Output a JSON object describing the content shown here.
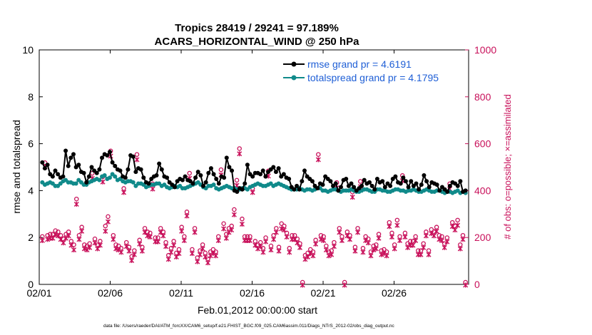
{
  "chart_data": {
    "type": "line",
    "title": "Tropics 28419 / 29241 = 97.189%",
    "subtitle": "ACARS_HORIZONTAL_WIND @ 250 hPa",
    "xlabel": "Feb.01,2012 00:00:00 start",
    "ylabel": "rmse and totalspread",
    "y2label": "# of obs: o=possible; ×=assimilated",
    "xticks": [
      "02/01",
      "02/06",
      "02/11",
      "02/16",
      "02/21",
      "02/26"
    ],
    "xlim": [
      0,
      30.25
    ],
    "ylim": [
      0,
      10
    ],
    "yticks": [
      "0",
      "2",
      "4",
      "6",
      "8",
      "10"
    ],
    "y2lim": [
      0,
      1000
    ],
    "y2ticks": [
      "0",
      "200",
      "400",
      "600",
      "800",
      "1000"
    ],
    "colors": {
      "rmse": "#000000",
      "spread": "#108a8a",
      "obs": "#c8105a",
      "legend_text": "#1f5fd6"
    },
    "series": [
      {
        "name": "rmse grand pr = 4.6191",
        "values": [
          5.2,
          4.95,
          5.1,
          4.7,
          4.6,
          4.85,
          4.7,
          4.55,
          4.6,
          5.7,
          5.05,
          5.4,
          5.55,
          5.0,
          5.1,
          4.8,
          4.75,
          4.35,
          4.6,
          5.0,
          4.85,
          4.75,
          4.9,
          5.4,
          5.55,
          5.5,
          5.65,
          5.2,
          5.05,
          4.9,
          4.85,
          4.6,
          4.55,
          4.9,
          5.5,
          5.45,
          4.8,
          4.95,
          4.9,
          4.55,
          4.35,
          4.3,
          4.5,
          4.6,
          4.65,
          5.15,
          4.9,
          4.6,
          4.55,
          4.35,
          4.25,
          4.15,
          4.4,
          4.5,
          4.45,
          4.6,
          4.45,
          4.4,
          4.3,
          4.55,
          4.8,
          4.65,
          4.2,
          4.35,
          4.75,
          4.95,
          4.7,
          4.5,
          4.3,
          4.6,
          4.55,
          5.4,
          5.0,
          4.85,
          4.0,
          3.95,
          4.1,
          4.05,
          4.3,
          5.1,
          4.7,
          4.6,
          4.75,
          4.75,
          4.7,
          4.85,
          4.6,
          4.8,
          4.9,
          5.0,
          4.8,
          4.95,
          4.6,
          4.7,
          4.55,
          4.5,
          4.15,
          4.05,
          4.2,
          4.05,
          4.4,
          4.85,
          4.6,
          4.5,
          4.4,
          4.2,
          4.1,
          4.3,
          4.25,
          4.6,
          4.5,
          4.4,
          4.2,
          4.3,
          4.0,
          4.15,
          4.45,
          4.5,
          4.2,
          4.3,
          4.15,
          4.0,
          4.1,
          4.2,
          4.45,
          4.3,
          4.35,
          4.2,
          4.05,
          4.5,
          4.35,
          4.4,
          4.15,
          4.3,
          4.2,
          4.5,
          4.6,
          4.35,
          4.3,
          4.55,
          4.4,
          4.15,
          4.4,
          4.2,
          4.3,
          4.05,
          4.25,
          4.65,
          4.4,
          4.15,
          4.35,
          4.3,
          4.25,
          4.0,
          4.15,
          4.05,
          3.95,
          4.2,
          4.35,
          4.3,
          4.2,
          4.4,
          3.95,
          4.0
        ]
      },
      {
        "name": "totalspread grand pr = 4.1795",
        "values": [
          4.35,
          4.25,
          4.3,
          4.35,
          4.3,
          4.2,
          4.2,
          4.3,
          4.4,
          4.45,
          4.35,
          4.35,
          4.3,
          4.3,
          4.45,
          4.35,
          4.25,
          4.25,
          4.35,
          4.4,
          4.45,
          4.5,
          4.45,
          4.6,
          4.65,
          4.5,
          4.55,
          4.7,
          4.6,
          4.45,
          4.5,
          4.4,
          4.35,
          4.4,
          4.4,
          4.35,
          4.2,
          4.3,
          4.3,
          4.25,
          4.15,
          4.2,
          4.25,
          4.25,
          4.3,
          4.3,
          4.2,
          4.25,
          4.15,
          4.1,
          4.15,
          4.2,
          4.15,
          4.2,
          4.1,
          4.1,
          4.15,
          4.2,
          4.25,
          4.3,
          4.35,
          4.25,
          4.15,
          4.1,
          4.2,
          4.2,
          4.25,
          4.1,
          4.05,
          4.1,
          4.15,
          4.2,
          4.15,
          4.1,
          4.1,
          4.05,
          4.05,
          4.1,
          4.1,
          4.05,
          4.15,
          4.2,
          4.25,
          4.3,
          4.25,
          4.2,
          4.2,
          4.25,
          4.3,
          4.2,
          4.25,
          4.3,
          4.25,
          4.2,
          4.15,
          4.1,
          4.05,
          4.05,
          4.05,
          4.1,
          4.05,
          4.0,
          4.05,
          4.05,
          4.0,
          4.05,
          4.1,
          4.1,
          4.0,
          4.0,
          3.95,
          4.0,
          4.05,
          4.05,
          4.0,
          3.95,
          4.0,
          4.0,
          4.0,
          4.05,
          4.0,
          3.95,
          3.95,
          4.0,
          4.05,
          4.05,
          4.0,
          3.95,
          3.95,
          4.05,
          4.05,
          4.0,
          4.0,
          3.95,
          3.95,
          4.0,
          4.05,
          4.05,
          4.0,
          4.0,
          3.95,
          4.0,
          4.0,
          4.05,
          4.0,
          3.95,
          3.95,
          4.0,
          4.05,
          4.0,
          3.95,
          3.95,
          4.0,
          4.0,
          3.95,
          3.9,
          3.95,
          3.95,
          3.9,
          3.95,
          4.0,
          3.9,
          3.95,
          3.9
        ]
      },
      {
        "name": "obs possible",
        "values": [
          195,
          510,
          200,
          205,
          205,
          220,
          215,
          200,
          185,
          205,
          215,
          175,
          160,
          355,
          200,
          235,
          160,
          155,
          165,
          465,
          185,
          160,
          175,
          450,
          240,
          280,
          560,
          200,
          160,
          155,
          145,
          400,
          170,
          150,
          110,
          135,
          545,
          180,
          150,
          230,
          215,
          210,
          420,
          190,
          190,
          230,
          215,
          170,
          115,
          145,
          175,
          125,
          140,
          235,
          195,
          300,
          465,
          140,
          230,
          105,
          135,
          160,
          125,
          100,
          130,
          140,
          130,
          195,
          480,
          250,
          205,
          230,
          240,
          310,
          435,
          570,
          270,
          195,
          195,
          195,
          400,
          175,
          160,
          170,
          145,
          190,
          475,
          155,
          200,
          230,
          150,
          250,
          240,
          210,
          145,
          200,
          200,
          185,
          165,
          0,
          115,
          125,
          140,
          130,
          180,
          545,
          200,
          195,
          155,
          130,
          135,
          170,
          425,
          230,
          195,
          0,
          215,
          200,
          385,
          150,
          230,
          430,
          145,
          195,
          185,
          130,
          155,
          160,
          205,
          135,
          140,
          130,
          255,
          210,
          160,
          265,
          195,
          455,
          210,
          165,
          175,
          175,
          195,
          135,
          135,
          165,
          215,
          135,
          225,
          215,
          235,
          200,
          195,
          165,
          190,
          420,
          255,
          240,
          265,
          160,
          200,
          0
        ]
      },
      {
        "name": "obs assimilated",
        "values": [
          190,
          505,
          195,
          200,
          200,
          215,
          210,
          195,
          180,
          200,
          210,
          170,
          150,
          345,
          195,
          230,
          155,
          150,
          160,
          455,
          180,
          155,
          170,
          440,
          230,
          270,
          550,
          195,
          155,
          150,
          140,
          395,
          165,
          145,
          105,
          130,
          535,
          175,
          145,
          225,
          210,
          205,
          410,
          185,
          185,
          225,
          210,
          165,
          110,
          140,
          170,
          120,
          135,
          230,
          190,
          295,
          455,
          135,
          225,
          100,
          130,
          155,
          120,
          95,
          125,
          135,
          125,
          190,
          470,
          240,
          200,
          225,
          235,
          300,
          425,
          560,
          260,
          190,
          190,
          190,
          395,
          170,
          155,
          165,
          140,
          185,
          465,
          150,
          195,
          225,
          145,
          240,
          235,
          205,
          140,
          195,
          195,
          180,
          160,
          0,
          110,
          120,
          135,
          125,
          175,
          535,
          195,
          190,
          150,
          125,
          130,
          165,
          415,
          225,
          190,
          0,
          210,
          195,
          375,
          145,
          225,
          420,
          140,
          190,
          180,
          125,
          150,
          155,
          200,
          130,
          135,
          125,
          250,
          205,
          155,
          255,
          190,
          445,
          205,
          160,
          170,
          170,
          190,
          130,
          130,
          160,
          210,
          130,
          220,
          210,
          230,
          195,
          190,
          160,
          185,
          410,
          250,
          235,
          255,
          155,
          195,
          0
        ]
      }
    ],
    "legend": {
      "rmse": "rmse grand pr = 4.6191",
      "spread": "totalspread grand pr = 4.1795"
    },
    "footer": "data file: /Users/raeder/DAI/ATM_forcXX/CAM6_setup/f.e21.FHIST_BGC.f09_025.CAM6assim.011/Diags_NTrS_2012-02/obs_diag_output.nc"
  }
}
